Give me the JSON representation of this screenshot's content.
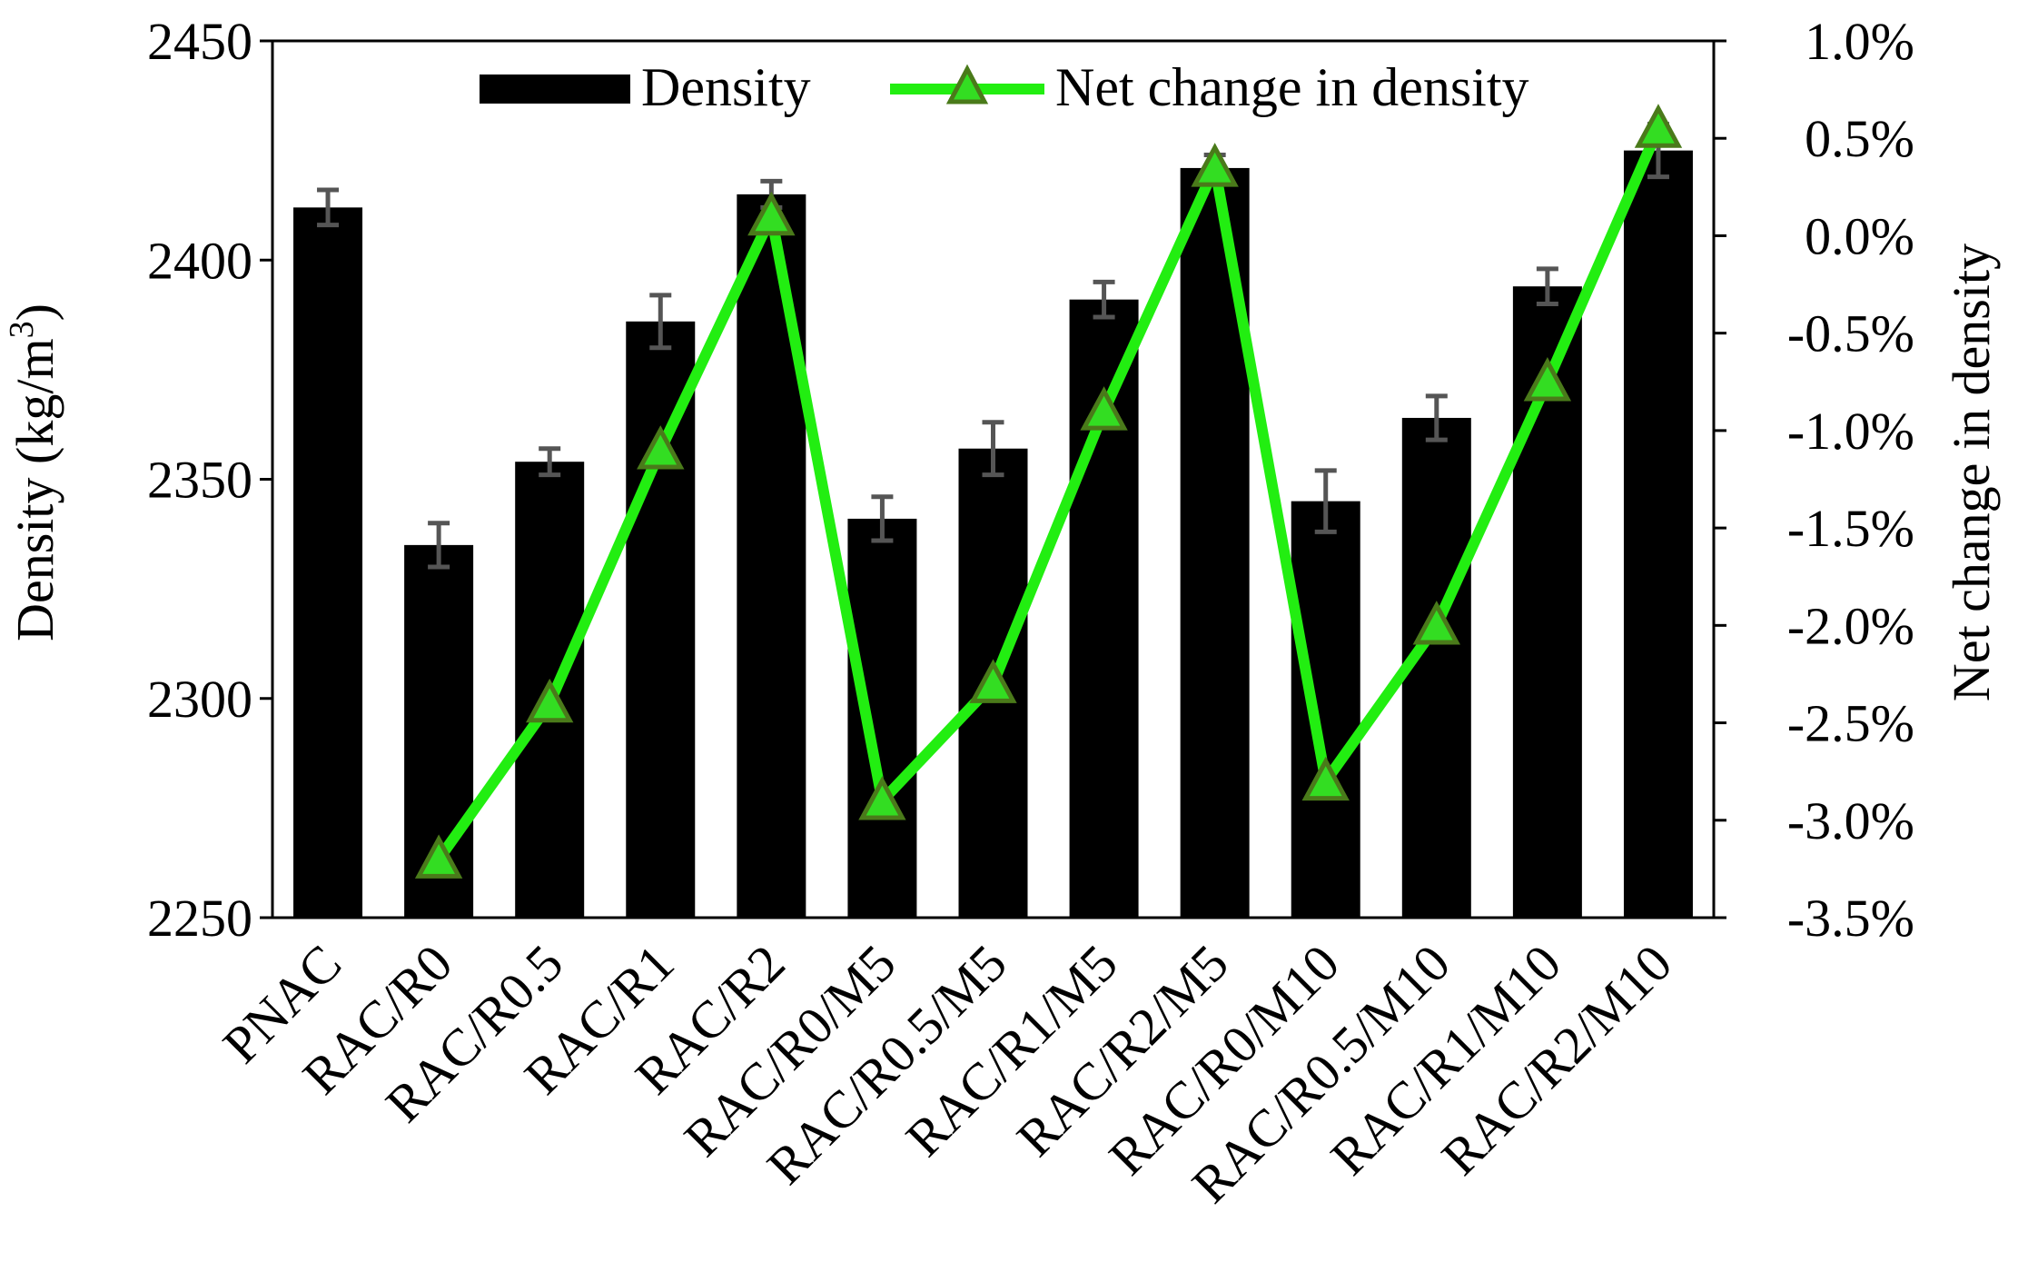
{
  "chart_data": {
    "type": "bar",
    "categories": [
      "PNAC",
      "RAC/R0",
      "RAC/R0.5",
      "RAC/R1",
      "RAC/R2",
      "RAC/R0/M5",
      "RAC/R0.5/M5",
      "RAC/R1/M5",
      "RAC/R2/M5",
      "RAC/R0/M10",
      "RAC/R0.5/M10",
      "RAC/R1/M10",
      "RAC/R2/M10"
    ],
    "series": [
      {
        "name": "Density",
        "kind": "bar",
        "axis": "left",
        "values": [
          2412,
          2335,
          2354,
          2386,
          2415,
          2341,
          2357,
          2391,
          2421,
          2345,
          2364,
          2394,
          2425
        ],
        "errors": [
          4,
          5,
          3,
          6,
          3,
          5,
          6,
          4,
          3,
          7,
          5,
          4,
          6
        ]
      },
      {
        "name": "Net change in density",
        "kind": "line",
        "axis": "right",
        "values": [
          null,
          -3.2,
          -2.4,
          -1.1,
          0.1,
          -2.9,
          -2.3,
          -0.9,
          0.35,
          -2.8,
          -2.0,
          -0.75,
          0.55
        ]
      }
    ],
    "y_left": {
      "label": "Density (kg/m",
      "label_sup": "3",
      "label_end": ")",
      "range": [
        2250,
        2450
      ],
      "ticks": [
        "2250",
        "2300",
        "2350",
        "2400",
        "2450"
      ]
    },
    "y_right": {
      "label": "Net change in density",
      "range": [
        -3.5,
        1.0
      ],
      "ticks": [
        "-3.5%",
        "-3.0%",
        "-2.5%",
        "-2.0%",
        "-1.5%",
        "-1.0%",
        "-0.5%",
        "0.0%",
        "0.5%",
        "1.0%"
      ]
    },
    "legend": {
      "position": "top",
      "items": [
        "Density",
        "Net change in density"
      ]
    },
    "colors": {
      "bar": "#000000",
      "error_bar": "#555555",
      "line": "#22ee11",
      "marker_fill": "#33dd22",
      "marker_stroke": "#4a7a1a"
    }
  }
}
